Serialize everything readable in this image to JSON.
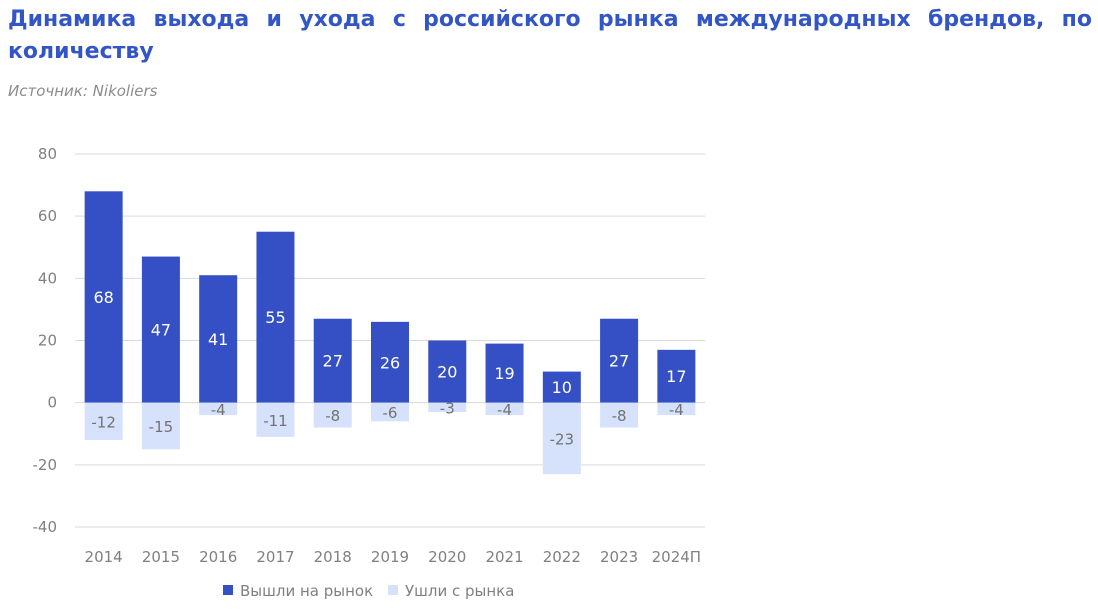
{
  "header": {
    "title": "Динамика выхода и ухода с российского рынка международных брендов, по количеству",
    "source": "Источник: Nikoliers"
  },
  "colors": {
    "title": "#3356c7",
    "entered": "#3550c4",
    "exited": "#d6e1fb",
    "grid": "#d9d9d9",
    "axis_text": "#808080"
  },
  "chart_data": {
    "type": "bar",
    "stacked": true,
    "categories": [
      "2014",
      "2015",
      "2016",
      "2017",
      "2018",
      "2019",
      "2020",
      "2021",
      "2022",
      "2023",
      "2024П"
    ],
    "series": [
      {
        "name": "Вышли на рынок",
        "values": [
          68,
          47,
          41,
          55,
          27,
          26,
          20,
          19,
          10,
          27,
          17
        ]
      },
      {
        "name": "Ушли с рынка",
        "values": [
          -12,
          -15,
          -4,
          -11,
          -8,
          -6,
          -3,
          -4,
          -23,
          -8,
          -4
        ]
      }
    ],
    "ylim": [
      -40,
      80
    ],
    "yticks": [
      80,
      60,
      40,
      20,
      0,
      -20,
      -40
    ],
    "grid": true,
    "legend": "bottom",
    "data_labels": true
  }
}
